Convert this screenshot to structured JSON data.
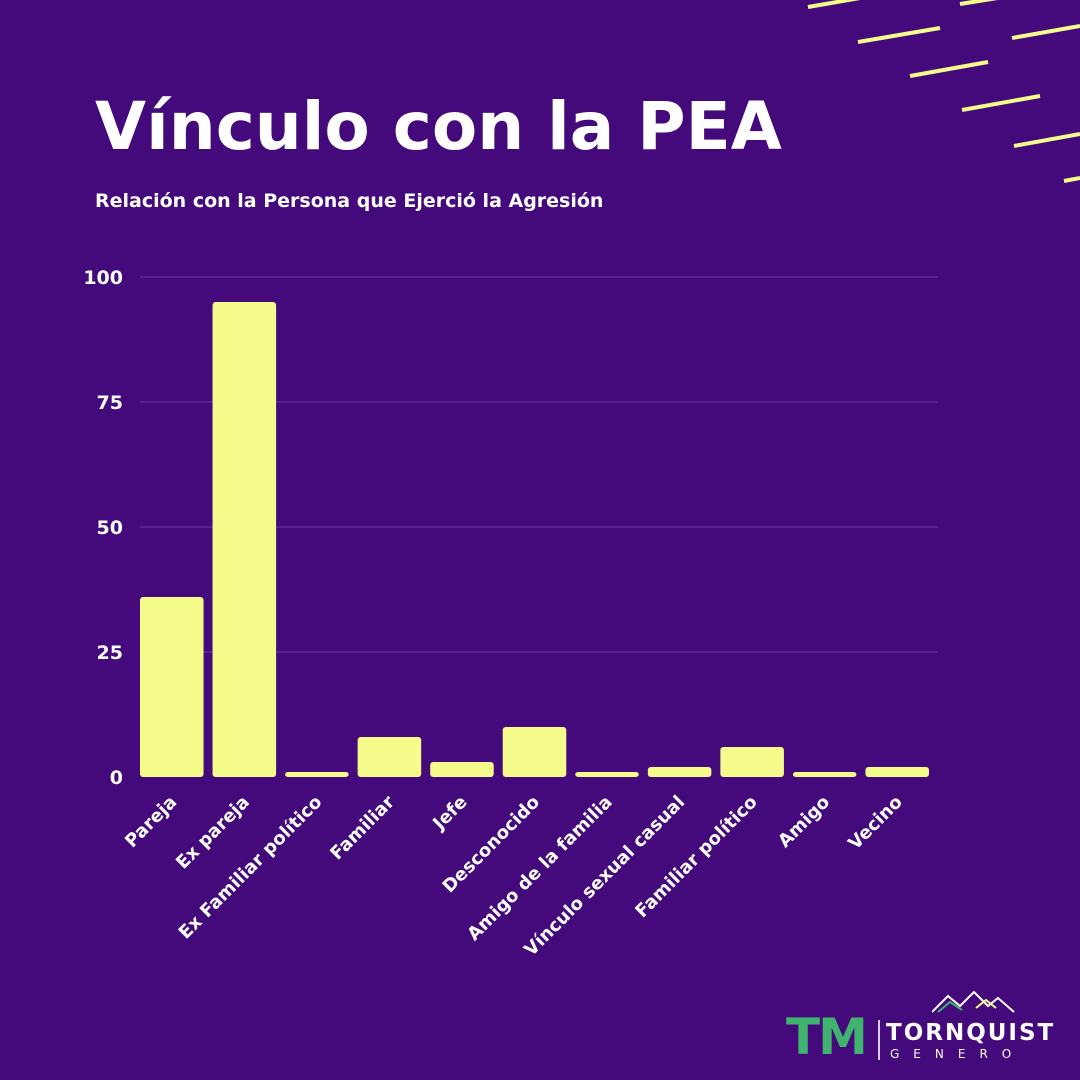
{
  "title": "Vínculo con la PEA",
  "subtitle": "Relación con la Persona que Ejerció la Agresión",
  "colors": {
    "background": "#440a7b",
    "bar": "#f5fb8a",
    "gridline": "#6a3aa0",
    "text": "#ffffff",
    "logo_green": "#3fb36f"
  },
  "chart_data": {
    "type": "bar",
    "categories": [
      "Pareja",
      "Ex pareja",
      "Ex Familiar político",
      "Familiar",
      "Jefe",
      "Desconocido",
      "Amigo de la familia",
      "Vínculo sexual casual",
      "Familiar político",
      "Amigo",
      "Vecino"
    ],
    "values": [
      36,
      95,
      1,
      8,
      3,
      10,
      1,
      2,
      6,
      1,
      2
    ],
    "yticks": [
      0,
      25,
      50,
      75,
      100
    ],
    "ylim": [
      0,
      100
    ],
    "grid": true,
    "legend": "none"
  },
  "logo": {
    "monogram": "TM",
    "name": "TORNQUIST",
    "sub": "GENERO",
    "mountains_icon": "mountains-icon"
  }
}
